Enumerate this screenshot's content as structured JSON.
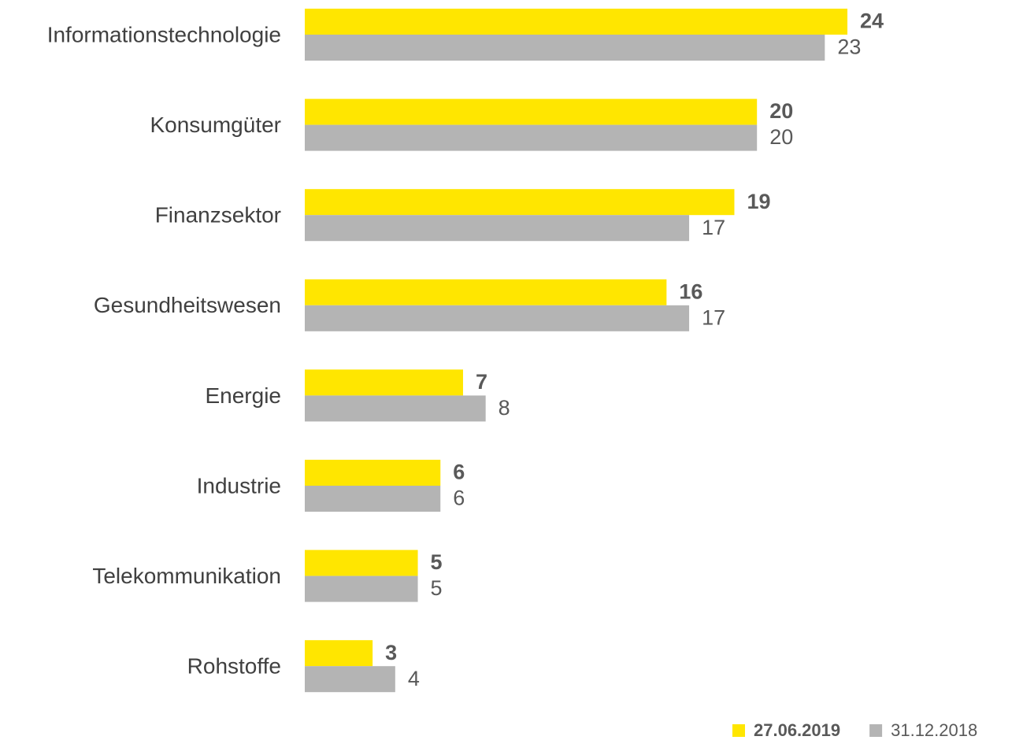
{
  "chart_data": {
    "type": "hbar",
    "categories": [
      "Informationstechnologie",
      "Konsumgüter",
      "Finanzsektor",
      "Gesundheitswesen",
      "Energie",
      "Industrie",
      "Telekommunikation",
      "Rohstoffe"
    ],
    "series": [
      {
        "name": "27.06.2019",
        "color": "#ffe600",
        "values": [
          24,
          20,
          19,
          16,
          7,
          6,
          5,
          3
        ]
      },
      {
        "name": "31.12.2018",
        "color": "#b4b4b4",
        "values": [
          23,
          20,
          17,
          17,
          8,
          6,
          5,
          4
        ]
      }
    ],
    "xlim": [
      0,
      31
    ],
    "legend": "bottom-right"
  }
}
